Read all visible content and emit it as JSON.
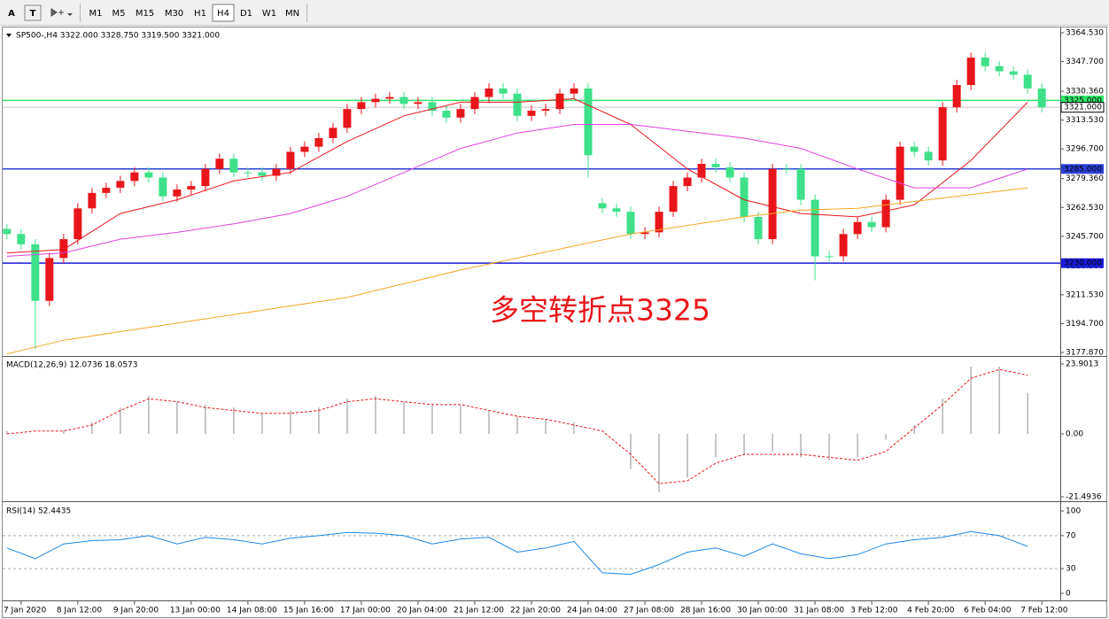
{
  "toolbar": {
    "tools": [
      "A",
      "T"
    ],
    "timeframes": [
      "M1",
      "M5",
      "M15",
      "M30",
      "H1",
      "H4",
      "D1",
      "W1",
      "MN"
    ],
    "active_index": 5
  },
  "chart_data": [
    {
      "type": "candlestick",
      "title": "SP500-,H4  3322.000 3328.750 3319.500 3321.000",
      "up_color": "#e8161b",
      "down_color": "#3ee089",
      "open": [
        3250,
        3247,
        3241,
        3208,
        3233,
        3244,
        3262,
        3271,
        3274,
        3278,
        3283,
        3280,
        3269,
        3273,
        3275,
        3285,
        3291,
        3283,
        3283,
        3281,
        3285,
        3295,
        3298,
        3303,
        3309,
        3320,
        3324,
        3326,
        3327,
        3323,
        3324,
        3319,
        3315,
        3320,
        3327,
        3332,
        3329,
        3316,
        3319,
        3320,
        3329,
        3332,
        3265,
        3262,
        3260,
        3247,
        3248,
        3260,
        3275,
        3280,
        3288,
        3286,
        3280,
        3257,
        3244,
        3285,
        3285,
        3267,
        3234,
        3234,
        3247,
        3254,
        3251,
        3267,
        3298,
        3295,
        3290,
        3321,
        3334,
        3350,
        3345,
        3342,
        3340,
        3332
      ],
      "high": [
        3253,
        3250,
        3244,
        3236,
        3247,
        3265,
        3274,
        3277,
        3281,
        3286,
        3286,
        3283,
        3276,
        3278,
        3288,
        3294,
        3294,
        3286,
        3286,
        3288,
        3298,
        3301,
        3306,
        3312,
        3323,
        3327,
        3329,
        3330,
        3330,
        3327,
        3327,
        3322,
        3323,
        3330,
        3335,
        3335,
        3332,
        3322,
        3323,
        3332,
        3335,
        3335,
        3268,
        3265,
        3263,
        3251,
        3263,
        3278,
        3283,
        3291,
        3291,
        3289,
        3283,
        3260,
        3288,
        3288,
        3288,
        3270,
        3237,
        3250,
        3257,
        3257,
        3270,
        3301,
        3301,
        3298,
        3324,
        3337,
        3353,
        3353,
        3348,
        3345,
        3343,
        3335
      ],
      "low": [
        3244,
        3238,
        3180,
        3205,
        3230,
        3241,
        3259,
        3268,
        3271,
        3275,
        3277,
        3266,
        3266,
        3270,
        3272,
        3282,
        3280,
        3280,
        3278,
        3278,
        3282,
        3292,
        3295,
        3300,
        3306,
        3317,
        3321,
        3323,
        3320,
        3320,
        3316,
        3312,
        3312,
        3317,
        3324,
        3326,
        3313,
        3313,
        3316,
        3317,
        3326,
        3280,
        3259,
        3257,
        3244,
        3244,
        3245,
        3257,
        3272,
        3277,
        3283,
        3277,
        3254,
        3241,
        3241,
        3282,
        3264,
        3220,
        3231,
        3231,
        3244,
        3248,
        3248,
        3264,
        3292,
        3287,
        3287,
        3318,
        3331,
        3342,
        3339,
        3337,
        3329,
        3318
      ],
      "close": [
        3247,
        3241,
        3208,
        3233,
        3244,
        3262,
        3271,
        3274,
        3278,
        3283,
        3280,
        3269,
        3273,
        3275,
        3285,
        3291,
        3283,
        3283,
        3281,
        3285,
        3295,
        3298,
        3303,
        3309,
        3320,
        3324,
        3326,
        3327,
        3323,
        3324,
        3319,
        3315,
        3320,
        3327,
        3332,
        3329,
        3316,
        3319,
        3320,
        3329,
        3332,
        3293,
        3262,
        3260,
        3247,
        3248,
        3260,
        3275,
        3280,
        3288,
        3286,
        3280,
        3257,
        3244,
        3285,
        3285,
        3267,
        3234,
        3234,
        3247,
        3254,
        3251,
        3267,
        3298,
        3295,
        3290,
        3321,
        3334,
        3350,
        3345,
        3342,
        3340,
        3332,
        3321
      ],
      "series": [
        {
          "color": "#e8161b",
          "x": [
            0,
            4,
            8,
            12,
            16,
            20,
            24,
            28,
            32,
            36,
            40,
            44,
            48,
            52,
            56,
            60,
            64,
            68,
            72
          ],
          "values": [
            3236,
            3238,
            3259,
            3267,
            3278,
            3283,
            3301,
            3316,
            3324,
            3324,
            3326,
            3311,
            3285,
            3267,
            3259,
            3257,
            3264,
            3290,
            3324
          ]
        },
        {
          "color": "#e040e0",
          "x": [
            0,
            4,
            8,
            12,
            16,
            20,
            24,
            28,
            32,
            36,
            40,
            44,
            48,
            52,
            56,
            60,
            64,
            68,
            72
          ],
          "values": [
            3234,
            3236,
            3244,
            3248,
            3253,
            3259,
            3269,
            3283,
            3297,
            3306,
            3311,
            3311,
            3307,
            3303,
            3297,
            3285,
            3274,
            3274,
            3285
          ]
        },
        {
          "color": "#f5a623",
          "x": [
            0,
            4,
            8,
            12,
            16,
            20,
            24,
            28,
            32,
            36,
            40,
            44,
            48,
            52,
            56,
            60,
            64,
            68,
            72
          ],
          "values": [
            3177,
            3185,
            3190,
            3195,
            3200,
            3205,
            3210,
            3218,
            3226,
            3233,
            3240,
            3247,
            3252,
            3257,
            3261,
            3262,
            3266,
            3270,
            3274
          ]
        }
      ],
      "levels": [
        {
          "value": 3325,
          "label": "3325.000",
          "color": "#2ee86a"
        },
        {
          "value": 3321,
          "label": "3321.000",
          "color": "#c8c8c8"
        },
        {
          "value": 3285,
          "label": "3285.000",
          "color": "#2b3fd6"
        },
        {
          "value": 3230,
          "label": "3230.000",
          "color": "#1a1ad9"
        }
      ],
      "annotation": "多空转折点3325",
      "xlim": [
        -0.3,
        74.3
      ],
      "ylim": [
        3175.8,
        3367.1
      ],
      "yticks": [
        {
          "value": 3364.53,
          "label": "3364.530"
        },
        {
          "value": 3347.7,
          "label": "3347.700"
        },
        {
          "value": 3330.36,
          "label": "3330.360"
        },
        {
          "value": 3313.53,
          "label": "3313.530"
        },
        {
          "value": 3296.7,
          "label": "3296.700"
        },
        {
          "value": 3279.36,
          "label": "3279.360"
        },
        {
          "value": 3262.53,
          "label": "3262.530"
        },
        {
          "value": 3245.7,
          "label": "3245.700"
        },
        {
          "value": 3228.36,
          "label": "3228.360"
        },
        {
          "value": 3211.53,
          "label": "3211.530"
        },
        {
          "value": 3194.7,
          "label": "3194.700"
        },
        {
          "value": 3177.87,
          "label": "3177.870"
        }
      ],
      "xticks": [
        {
          "value": 1,
          "label": "7 Jan 2020"
        },
        {
          "value": 5,
          "label": "8 Jan 12:00"
        },
        {
          "value": 9,
          "label": "9 Jan 20:00"
        },
        {
          "value": 13,
          "label": "13 Jan 00:00"
        },
        {
          "value": 17,
          "label": "14 Jan 08:00"
        },
        {
          "value": 21,
          "label": "15 Jan 16:00"
        },
        {
          "value": 25,
          "label": "17 Jan 00:00"
        },
        {
          "value": 29,
          "label": "20 Jan 04:00"
        },
        {
          "value": 33,
          "label": "21 Jan 12:00"
        },
        {
          "value": 37,
          "label": "22 Jan 20:00"
        },
        {
          "value": 41,
          "label": "24 Jan 04:00"
        },
        {
          "value": 45,
          "label": "27 Jan 08:00"
        },
        {
          "value": 49,
          "label": "28 Jan 16:00"
        },
        {
          "value": 53,
          "label": "30 Jan 00:00"
        },
        {
          "value": 57,
          "label": "31 Jan 08:00"
        },
        {
          "value": 61,
          "label": "3 Feb 12:00"
        },
        {
          "value": 65,
          "label": "4 Feb 20:00"
        },
        {
          "value": 69,
          "label": "6 Feb 04:00"
        },
        {
          "value": 73,
          "label": "7 Feb 12:00"
        }
      ]
    },
    {
      "type": "macd",
      "title": "MACD(12,26,9) 12.0736 18.0573",
      "xlim": [
        -0.3,
        74.3
      ],
      "ylim": [
        -23,
        26
      ],
      "yticks": [
        23.9013,
        {
          "value": 0,
          "label": "0.00"
        },
        -21.4936
      ],
      "series": [
        {
          "color": "#b4b4b4",
          "x": [
            0,
            2,
            4,
            6,
            8,
            10,
            12,
            14,
            16,
            18,
            20,
            22,
            24,
            26,
            28,
            30,
            32,
            34,
            36,
            38,
            40,
            42,
            44,
            46,
            48,
            50,
            52,
            54,
            56,
            58,
            60,
            62,
            64,
            66,
            68,
            70,
            72
          ],
          "values": [
            1,
            0,
            1,
            4,
            9,
            13,
            11,
            10,
            9,
            7,
            8,
            9,
            12,
            13,
            11,
            10,
            10,
            8,
            6,
            5,
            4,
            0,
            -12,
            -20,
            -15,
            -8,
            -7,
            -6,
            -8,
            -9,
            -8,
            -2,
            3,
            12,
            23,
            23,
            14
          ]
        },
        {
          "color": "#e8161b",
          "x": [
            0,
            2,
            4,
            6,
            8,
            10,
            12,
            14,
            16,
            18,
            20,
            22,
            24,
            26,
            28,
            30,
            32,
            34,
            36,
            38,
            40,
            42,
            44,
            46,
            48,
            50,
            52,
            54,
            56,
            58,
            60,
            62,
            64,
            66,
            68,
            70,
            72
          ],
          "values": [
            0,
            1,
            1,
            3,
            8,
            12,
            11,
            9,
            8,
            7,
            7,
            8,
            11,
            12,
            11,
            10,
            10,
            8,
            6,
            5,
            3,
            1,
            -7,
            -17,
            -16,
            -10,
            -7,
            -7,
            -7,
            -8,
            -9,
            -6,
            2,
            10,
            19,
            22,
            20
          ]
        }
      ]
    },
    {
      "type": "line",
      "title": "RSI(14) 52.4435",
      "xlim": [
        -0.3,
        74.3
      ],
      "ylim": [
        -8.6,
        108.6
      ],
      "yticks": [
        100,
        70,
        30,
        0
      ],
      "levels": [
        70,
        30
      ],
      "series": [
        {
          "color": "#1e88e5",
          "x": [
            0,
            2,
            4,
            6,
            8,
            10,
            12,
            14,
            16,
            18,
            20,
            22,
            24,
            26,
            28,
            30,
            32,
            34,
            36,
            38,
            40,
            42,
            44,
            46,
            48,
            50,
            52,
            54,
            56,
            58,
            60,
            62,
            64,
            66,
            68,
            70,
            72
          ],
          "values": [
            55,
            42,
            60,
            64,
            65,
            70,
            60,
            68,
            65,
            60,
            67,
            70,
            74,
            73,
            70,
            60,
            66,
            68,
            50,
            55,
            63,
            25,
            23,
            35,
            50,
            55,
            45,
            60,
            48,
            42,
            47,
            60,
            65,
            68,
            75,
            70,
            57
          ]
        }
      ]
    }
  ]
}
